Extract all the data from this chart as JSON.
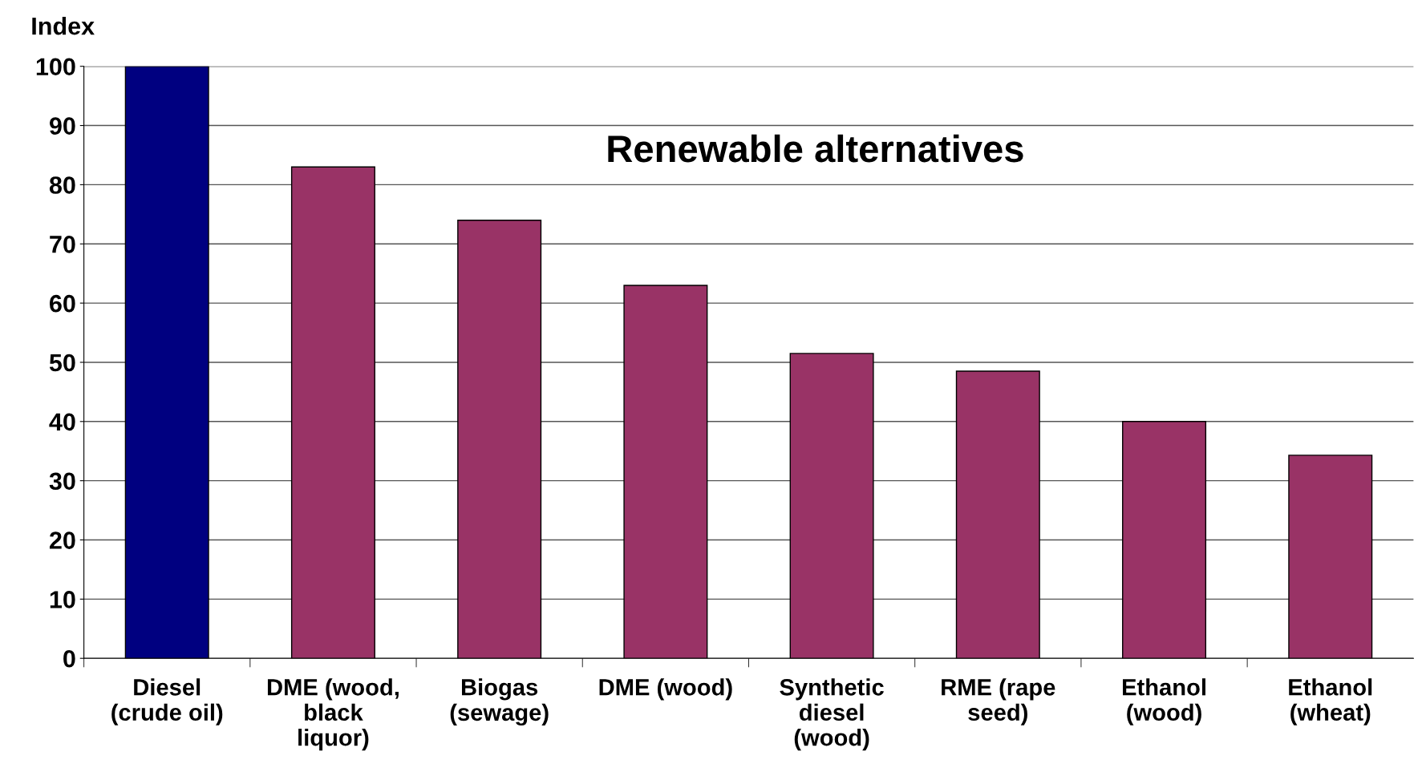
{
  "chart_data": {
    "type": "bar",
    "ylabel": "Index",
    "categories": [
      "Diesel\n(crude oil)",
      "DME (wood,\nblack\nliquor)",
      "Biogas\n(sewage)",
      "DME (wood)",
      "Synthetic\ndiesel\n(wood)",
      "RME (rape\nseed)",
      "Ethanol\n(wood)",
      "Ethanol\n(wheat)"
    ],
    "values": [
      100,
      83,
      74,
      63,
      51.5,
      48.5,
      40,
      34.3
    ],
    "colors": [
      "#000080",
      "#993366",
      "#993366",
      "#993366",
      "#993366",
      "#993366",
      "#993366",
      "#993366"
    ],
    "ylim": [
      0,
      100
    ],
    "yticks": [
      0,
      10,
      20,
      30,
      40,
      50,
      60,
      70,
      80,
      90,
      100
    ],
    "grid": "y",
    "annotations": [
      "Renewable alternatives"
    ]
  }
}
